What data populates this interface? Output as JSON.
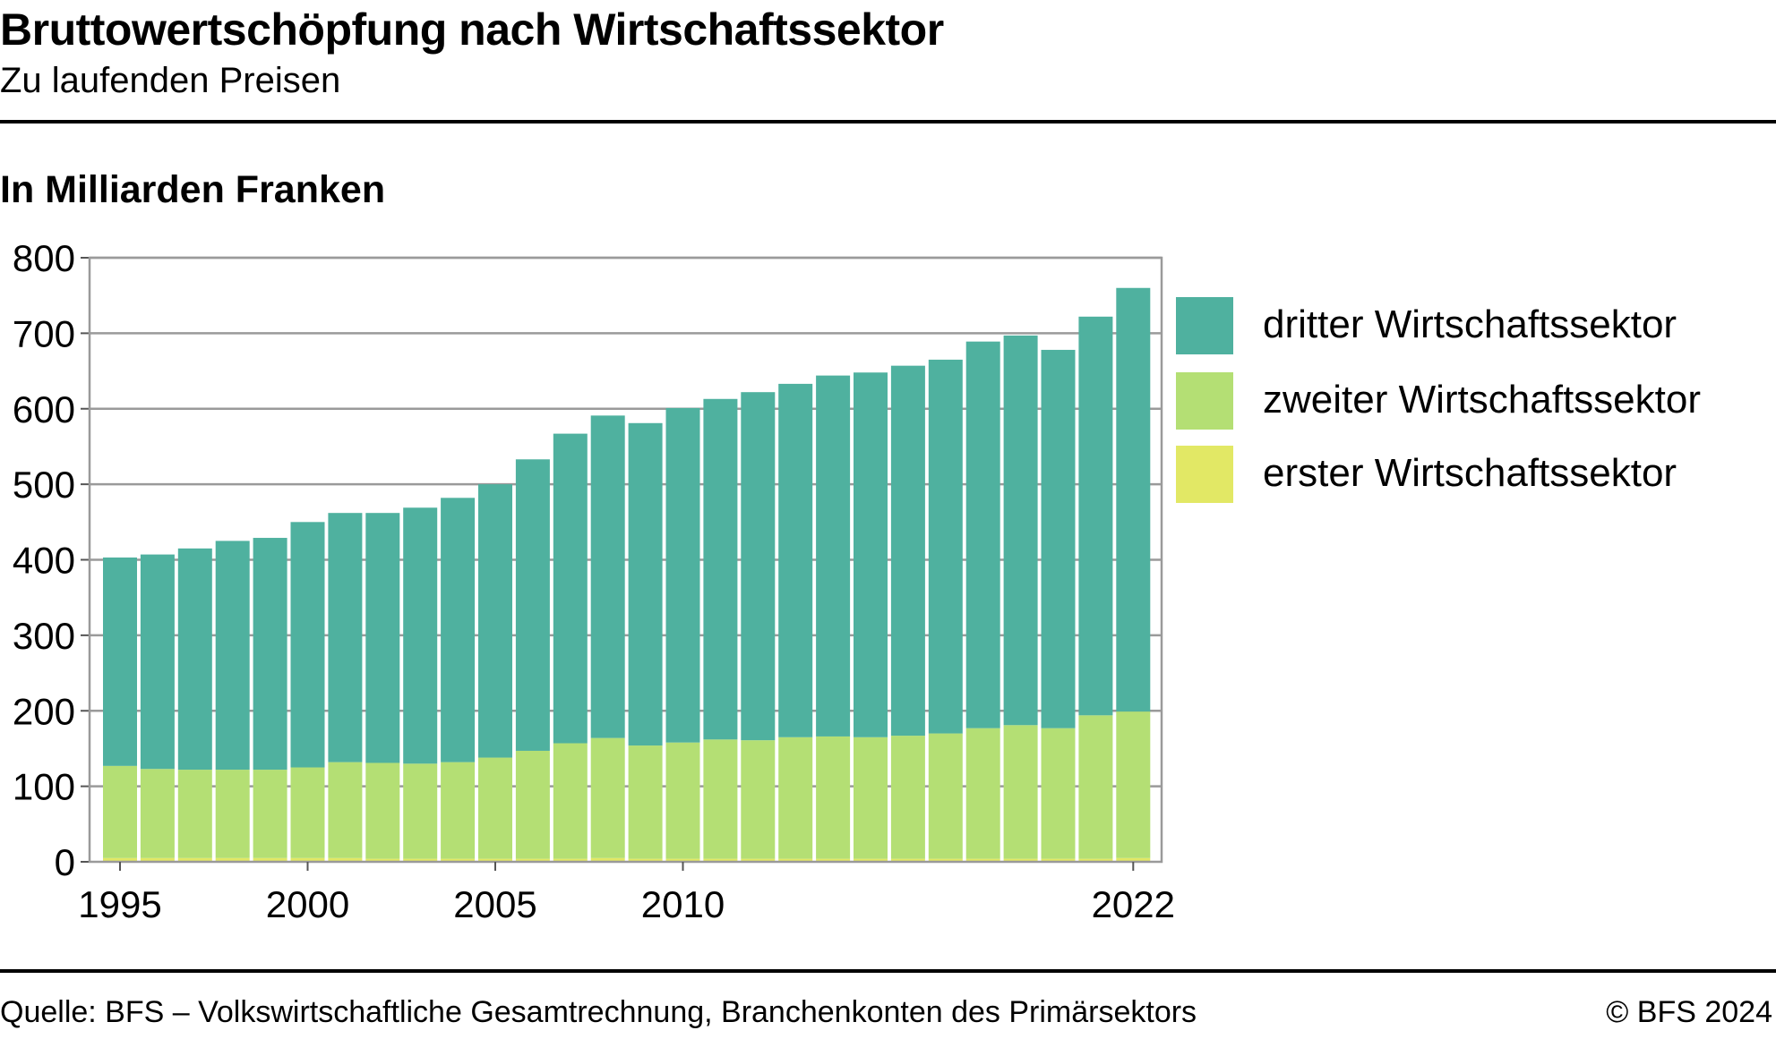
{
  "title": "Bruttowertschöpfung nach Wirtschaftssektor",
  "subtitle": "Zu laufenden Preisen",
  "unit_label": "In Milliarden Franken",
  "source": "Quelle: BFS – Volkswirtschaftliche Gesamtrechnung, Branchenkonten des Primärsektors",
  "copyright": "© BFS 2024",
  "colors": {
    "dritter": "#4fb19f",
    "zweiter": "#b4df74",
    "erster": "#e2e865",
    "grid": "#9a9a9a",
    "axis": "#555555"
  },
  "chart_data": {
    "type": "bar",
    "stacked": true,
    "categories": [
      "1995",
      "1996",
      "1997",
      "1998",
      "1999",
      "2000",
      "2001",
      "2002",
      "2003",
      "2004",
      "2005",
      "2006",
      "2007",
      "2008",
      "2009",
      "2010",
      "2011",
      "2012",
      "2013",
      "2014",
      "2015",
      "2016",
      "2017",
      "2018",
      "2019",
      "2020",
      "2021",
      "2022"
    ],
    "x_tick_labels": [
      "1995",
      "2000",
      "2005",
      "2010",
      "2022"
    ],
    "x_tick_years": [
      "1995",
      "2000",
      "2005",
      "2010",
      "2022"
    ],
    "y_ticks": [
      "0",
      "100",
      "200",
      "300",
      "400",
      "500",
      "600",
      "700",
      "800"
    ],
    "ylim": [
      0,
      800
    ],
    "grid": true,
    "legend_position": "right",
    "series": [
      {
        "name": "erster Wirtschaftssektor",
        "color_key": "erster",
        "values": [
          5,
          5,
          5,
          5,
          5,
          5,
          5,
          4,
          4,
          4,
          4,
          4,
          4,
          5,
          4,
          4,
          4,
          4,
          4,
          4,
          4,
          4,
          4,
          4,
          4,
          4,
          4,
          5
        ]
      },
      {
        "name": "zweiter Wirtschaftssektor",
        "color_key": "zweiter",
        "values": [
          122,
          118,
          117,
          117,
          117,
          120,
          127,
          127,
          126,
          128,
          134,
          143,
          153,
          159,
          150,
          154,
          158,
          157,
          161,
          162,
          161,
          163,
          166,
          173,
          177,
          173,
          190,
          194
        ]
      },
      {
        "name": "dritter Wirtschaftssektor",
        "color_key": "dritter",
        "values": [
          276,
          284,
          293,
          303,
          307,
          325,
          330,
          331,
          339,
          350,
          362,
          386,
          410,
          427,
          427,
          443,
          451,
          461,
          468,
          478,
          483,
          490,
          495,
          512,
          516,
          501,
          528,
          561
        ]
      }
    ]
  },
  "legend": [
    {
      "label": "dritter Wirtschaftssektor",
      "color_key": "dritter"
    },
    {
      "label": "zweiter Wirtschaftssektor",
      "color_key": "zweiter"
    },
    {
      "label": "erster Wirtschaftssektor",
      "color_key": "erster"
    }
  ]
}
